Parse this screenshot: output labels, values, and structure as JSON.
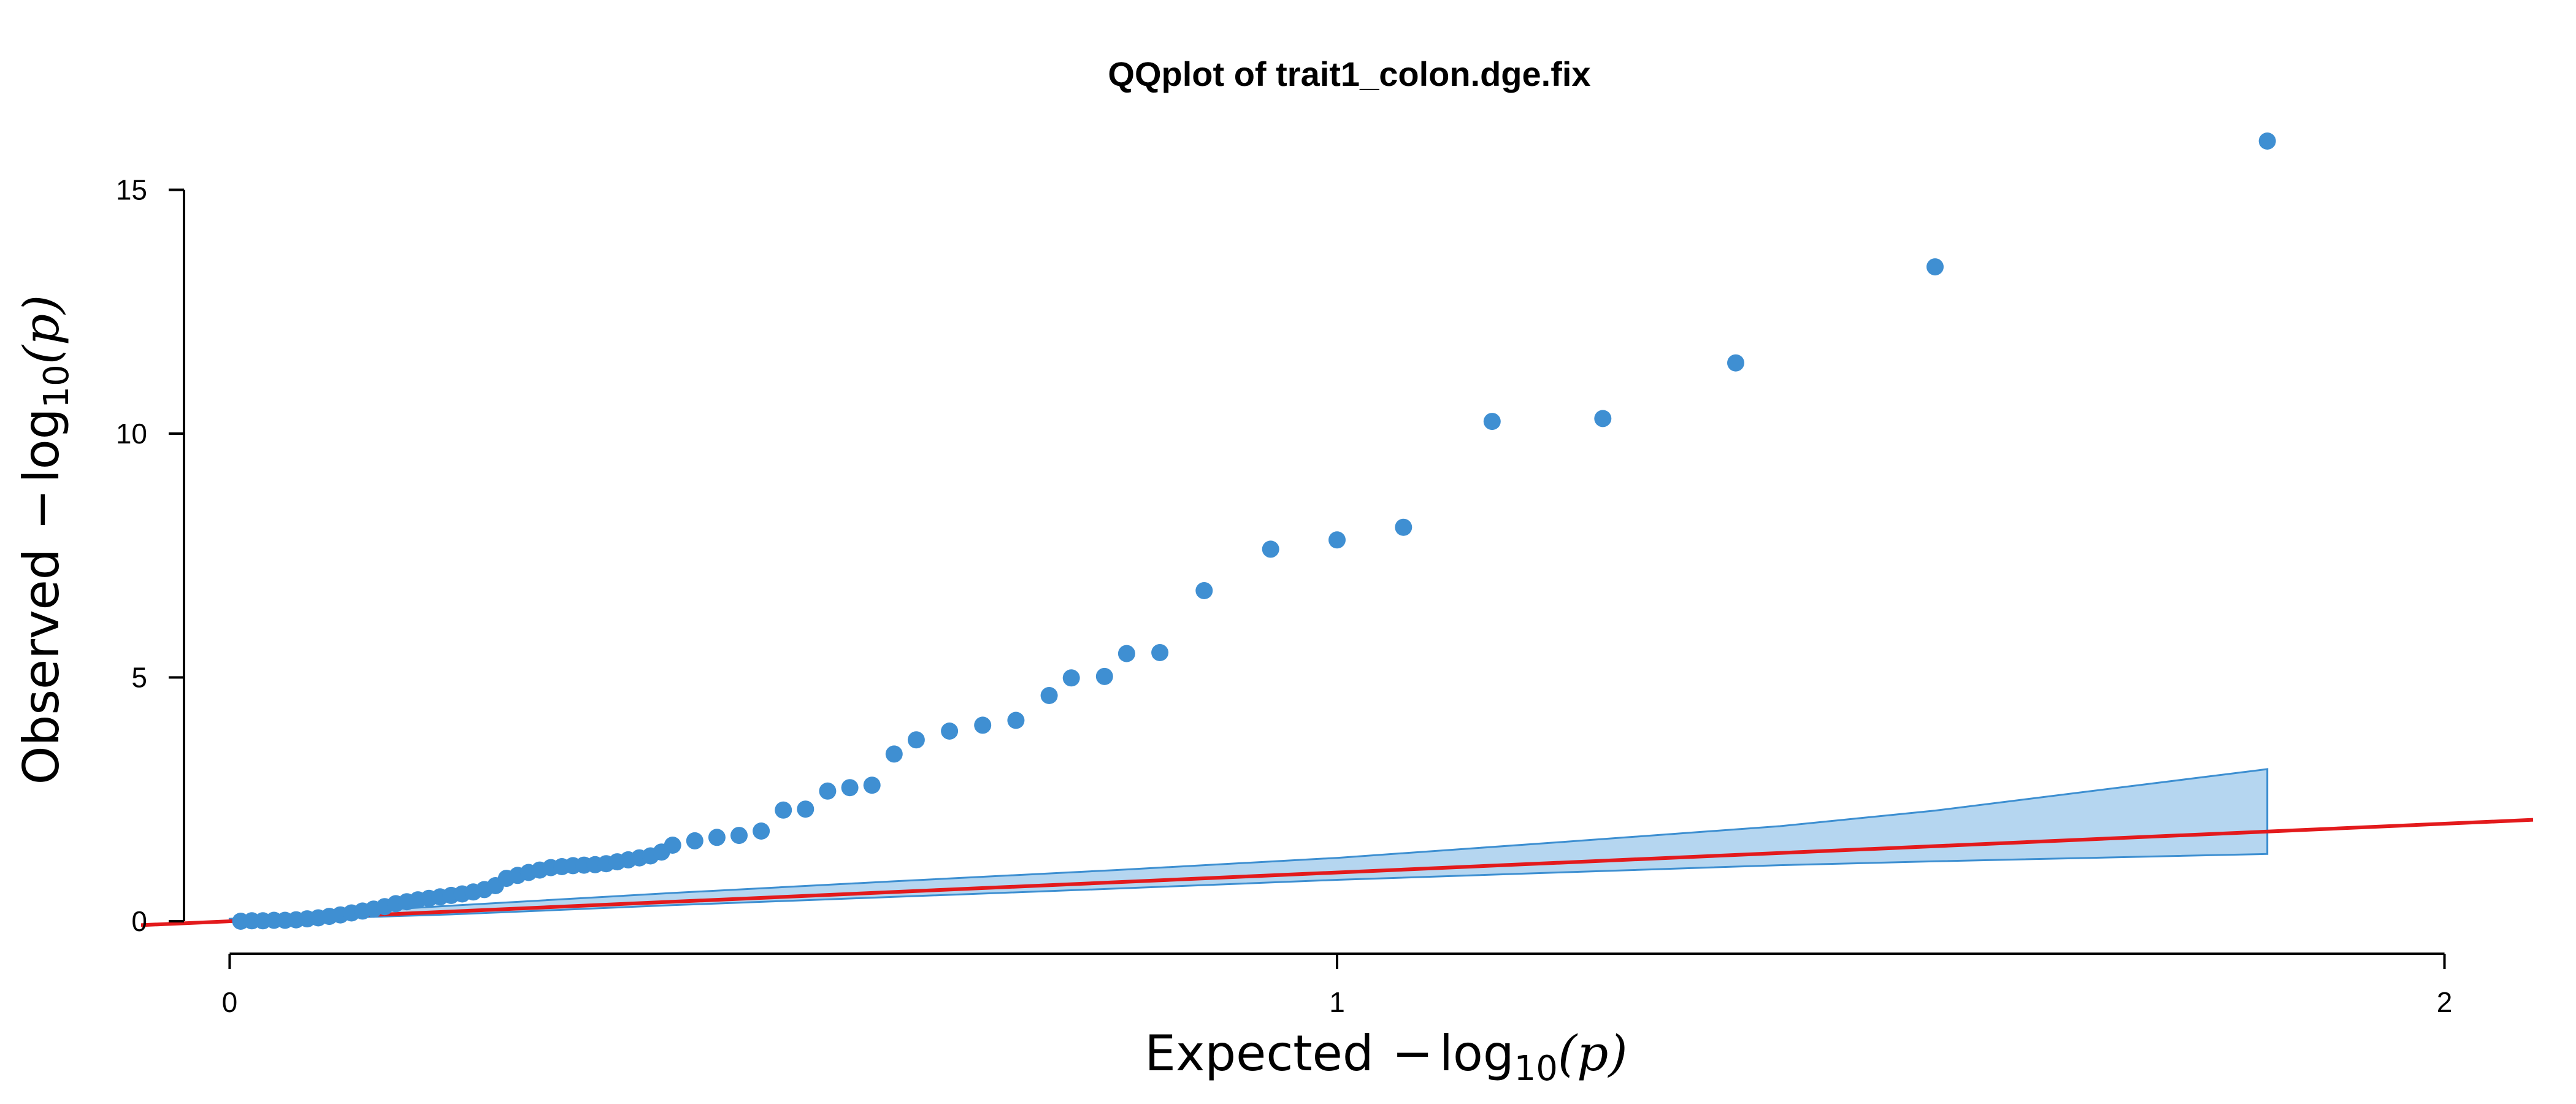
{
  "chart_data": {
    "type": "scatter",
    "title": "QQplot of trait1_colon.dge.fix",
    "xlabel": {
      "prefix": "Expected",
      "minus": "−",
      "func": "log",
      "sub": "10",
      "arg": "(p)"
    },
    "ylabel": {
      "prefix": "Observed",
      "minus": "−",
      "func": "log",
      "sub": "10",
      "arg": "(p)"
    },
    "xlim": [
      -0.08,
      2.08
    ],
    "ylim": [
      -0.1,
      16.0
    ],
    "x_ticks": [
      0,
      1,
      2
    ],
    "x_tick_labels": [
      "0",
      "1",
      "2"
    ],
    "y_ticks": [
      0,
      5,
      10,
      15
    ],
    "y_tick_labels": [
      "0",
      "5",
      "10",
      "15"
    ],
    "reference_line": {
      "slope": 1,
      "intercept": 0,
      "color": "#e31a1c"
    },
    "confidence_band": {
      "color": "#b5d6f0",
      "edge_color": "#3d8fd1",
      "x": [
        0.0,
        0.2,
        0.4,
        0.6,
        0.8,
        1.0,
        1.2,
        1.4,
        1.54,
        1.84
      ],
      "upper": [
        0.05,
        0.32,
        0.58,
        0.82,
        1.05,
        1.3,
        1.62,
        1.95,
        2.27,
        3.12
      ],
      "lower": [
        0.0,
        0.14,
        0.33,
        0.5,
        0.67,
        0.85,
        1.0,
        1.15,
        1.23,
        1.38
      ]
    },
    "series": [
      {
        "color": "#3f8fd2",
        "points": [
          [
            0.01,
            0.0
          ],
          [
            0.02,
            0.01
          ],
          [
            0.03,
            0.01
          ],
          [
            0.04,
            0.02
          ],
          [
            0.05,
            0.02
          ],
          [
            0.06,
            0.03
          ],
          [
            0.07,
            0.05
          ],
          [
            0.08,
            0.07
          ],
          [
            0.09,
            0.1
          ],
          [
            0.1,
            0.13
          ],
          [
            0.11,
            0.17
          ],
          [
            0.12,
            0.21
          ],
          [
            0.13,
            0.25
          ],
          [
            0.14,
            0.3
          ],
          [
            0.15,
            0.36
          ],
          [
            0.16,
            0.4
          ],
          [
            0.17,
            0.44
          ],
          [
            0.18,
            0.47
          ],
          [
            0.19,
            0.5
          ],
          [
            0.2,
            0.53
          ],
          [
            0.21,
            0.56
          ],
          [
            0.22,
            0.6
          ],
          [
            0.23,
            0.65
          ],
          [
            0.24,
            0.73
          ],
          [
            0.25,
            0.88
          ],
          [
            0.26,
            0.94
          ],
          [
            0.27,
            1.0
          ],
          [
            0.28,
            1.05
          ],
          [
            0.29,
            1.1
          ],
          [
            0.3,
            1.12
          ],
          [
            0.31,
            1.14
          ],
          [
            0.32,
            1.15
          ],
          [
            0.33,
            1.16
          ],
          [
            0.34,
            1.18
          ],
          [
            0.35,
            1.22
          ],
          [
            0.36,
            1.26
          ],
          [
            0.37,
            1.3
          ],
          [
            0.38,
            1.34
          ],
          [
            0.39,
            1.42
          ],
          [
            0.4,
            1.56
          ],
          [
            0.42,
            1.65
          ],
          [
            0.44,
            1.72
          ],
          [
            0.46,
            1.76
          ],
          [
            0.48,
            1.85
          ],
          [
            0.5,
            2.28
          ],
          [
            0.52,
            2.3
          ],
          [
            0.54,
            2.67
          ],
          [
            0.56,
            2.74
          ],
          [
            0.58,
            2.79
          ],
          [
            0.6,
            3.43
          ],
          [
            0.62,
            3.72
          ],
          [
            0.65,
            3.9
          ],
          [
            0.68,
            4.02
          ],
          [
            0.71,
            4.12
          ],
          [
            0.74,
            4.63
          ],
          [
            0.76,
            4.99
          ],
          [
            0.79,
            5.02
          ],
          [
            0.81,
            5.49
          ],
          [
            0.84,
            5.51
          ],
          [
            0.88,
            6.78
          ],
          [
            0.94,
            7.63
          ],
          [
            1.0,
            7.82
          ],
          [
            1.06,
            8.08
          ],
          [
            1.14,
            10.25
          ],
          [
            1.24,
            10.31
          ],
          [
            1.36,
            11.45
          ],
          [
            1.54,
            13.42
          ],
          [
            1.84,
            16.0
          ]
        ]
      }
    ]
  }
}
